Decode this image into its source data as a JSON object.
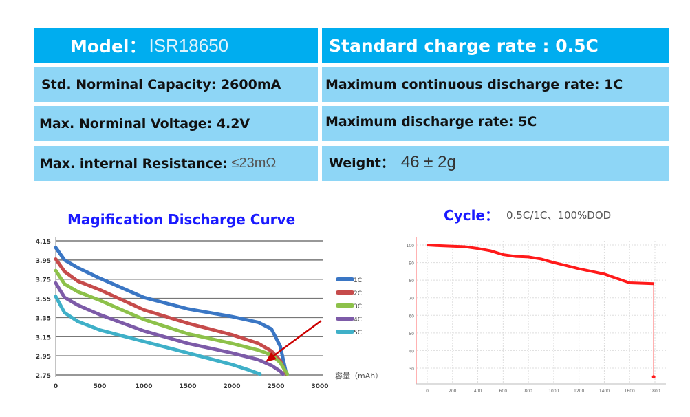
{
  "specs": {
    "model_label": "Model：",
    "model_value": "ISR18650",
    "charge_rate": "Standard charge rate : 0.5C",
    "capacity": "Std. Norminal Capacity: 2600mA",
    "max_cont_discharge": "Maximum continuous discharge rate: 1C",
    "voltage": "Max. Norminal Voltage: 4.2V",
    "max_discharge": "Maximum discharge rate: 5C",
    "resistance_label": "Max. internal Resistance:",
    "resistance_value": "≤23mΩ",
    "weight_label": "Weight：",
    "weight_value": "46 ± 2g"
  },
  "colors": {
    "header": "#00adef",
    "row": "#8ed6f6",
    "title": "#1a1aff"
  },
  "chart_data": [
    {
      "type": "line",
      "title": "Magification Discharge Curve",
      "xlabel": "容量（mAh）",
      "ylabel": "",
      "xlim": [
        0,
        3000
      ],
      "ylim": [
        2.75,
        4.15
      ],
      "grid": "horizontal",
      "legend": "right",
      "xticks": [
        "0",
        "500",
        "1000",
        "1500",
        "2000",
        "2500",
        "3000"
      ],
      "yticks": [
        "4.15",
        "3.95",
        "3.75",
        "3.55",
        "3.35",
        "3.15",
        "2.95",
        "2.75"
      ],
      "series": [
        {
          "name": "1C",
          "color": "#3a76c4",
          "points": [
            [
              0,
              4.08
            ],
            [
              100,
              3.95
            ],
            [
              250,
              3.87
            ],
            [
              500,
              3.76
            ],
            [
              1000,
              3.56
            ],
            [
              1500,
              3.44
            ],
            [
              2000,
              3.36
            ],
            [
              2300,
              3.3
            ],
            [
              2450,
              3.23
            ],
            [
              2550,
              3.05
            ],
            [
              2620,
              2.76
            ]
          ]
        },
        {
          "name": "2C",
          "color": "#c64b4b",
          "points": [
            [
              0,
              3.96
            ],
            [
              100,
              3.83
            ],
            [
              250,
              3.73
            ],
            [
              500,
              3.64
            ],
            [
              1000,
              3.43
            ],
            [
              1500,
              3.29
            ],
            [
              2000,
              3.17
            ],
            [
              2300,
              3.08
            ],
            [
              2450,
              3.0
            ],
            [
              2550,
              2.9
            ],
            [
              2620,
              2.76
            ]
          ]
        },
        {
          "name": "3C",
          "color": "#8dc14a",
          "points": [
            [
              0,
              3.84
            ],
            [
              100,
              3.7
            ],
            [
              250,
              3.62
            ],
            [
              500,
              3.53
            ],
            [
              1000,
              3.33
            ],
            [
              1500,
              3.18
            ],
            [
              2000,
              3.08
            ],
            [
              2300,
              3.01
            ],
            [
              2450,
              2.96
            ],
            [
              2550,
              2.88
            ],
            [
              2630,
              2.76
            ]
          ]
        },
        {
          "name": "4C",
          "color": "#7d5ba8",
          "points": [
            [
              0,
              3.71
            ],
            [
              100,
              3.56
            ],
            [
              250,
              3.48
            ],
            [
              500,
              3.38
            ],
            [
              1000,
              3.21
            ],
            [
              1500,
              3.08
            ],
            [
              2000,
              2.98
            ],
            [
              2300,
              2.91
            ],
            [
              2450,
              2.85
            ],
            [
              2550,
              2.79
            ],
            [
              2580,
              2.76
            ]
          ]
        },
        {
          "name": "5C",
          "color": "#3fb0c8",
          "points": [
            [
              0,
              3.57
            ],
            [
              100,
              3.4
            ],
            [
              250,
              3.31
            ],
            [
              500,
              3.22
            ],
            [
              1000,
              3.1
            ],
            [
              1500,
              2.98
            ],
            [
              2000,
              2.86
            ],
            [
              2200,
              2.8
            ],
            [
              2320,
              2.76
            ]
          ]
        }
      ]
    },
    {
      "type": "line",
      "title": "Cycle：",
      "subtitle": "0.5C/1C、100%DOD",
      "xlim": [
        0,
        1800
      ],
      "ylim": [
        20,
        105
      ],
      "grid": "both",
      "xticks": [
        "0",
        "200",
        "400",
        "600",
        "800",
        "1000",
        "1200",
        "1400",
        "1600",
        "1800"
      ],
      "yticks": [
        "100",
        "90",
        "80",
        "70",
        "60",
        "50",
        "40",
        "30"
      ],
      "series": [
        {
          "color": "#ff1a1a",
          "points": [
            [
              0,
              100
            ],
            [
              100,
              99.6
            ],
            [
              200,
              99.3
            ],
            [
              300,
              99
            ],
            [
              400,
              98
            ],
            [
              500,
              96.7
            ],
            [
              600,
              94.5
            ],
            [
              700,
              93.5
            ],
            [
              800,
              93.2
            ],
            [
              900,
              92
            ],
            [
              1000,
              90
            ],
            [
              1100,
              88.3
            ],
            [
              1200,
              86.5
            ],
            [
              1300,
              85
            ],
            [
              1400,
              83.5
            ],
            [
              1500,
              81
            ],
            [
              1600,
              78.5
            ],
            [
              1790,
              78
            ],
            [
              1790,
              25
            ]
          ]
        }
      ]
    }
  ]
}
